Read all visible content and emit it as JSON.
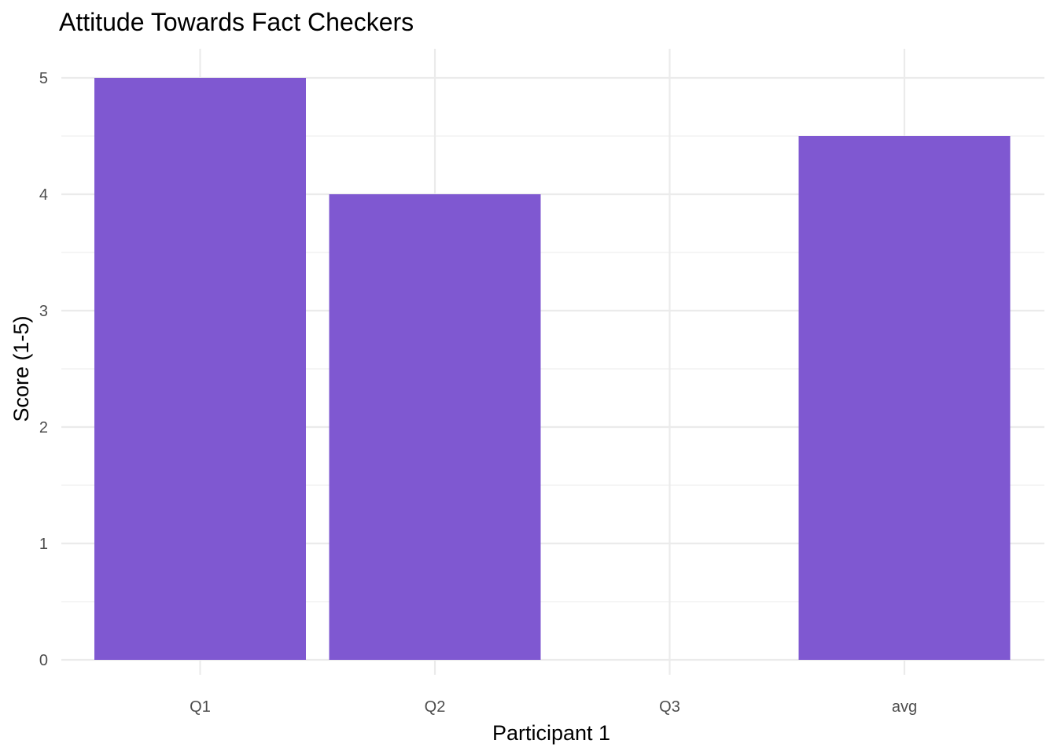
{
  "chart_data": {
    "type": "bar",
    "title": "Attitude Towards Fact Checkers",
    "xlabel": "Participant 1",
    "ylabel": "Score (1-5)",
    "categories": [
      "Q1",
      "Q2",
      "Q3",
      "avg"
    ],
    "values": [
      5,
      4,
      0,
      4.5
    ],
    "ylim": [
      0,
      5
    ],
    "yticks": [
      "0",
      "1",
      "2",
      "3",
      "4",
      "5"
    ],
    "grid": true,
    "legend": "none",
    "bar_color": "#7F58D1",
    "grid_color": "#EBEBEB",
    "background_color": "#FFFFFF"
  }
}
